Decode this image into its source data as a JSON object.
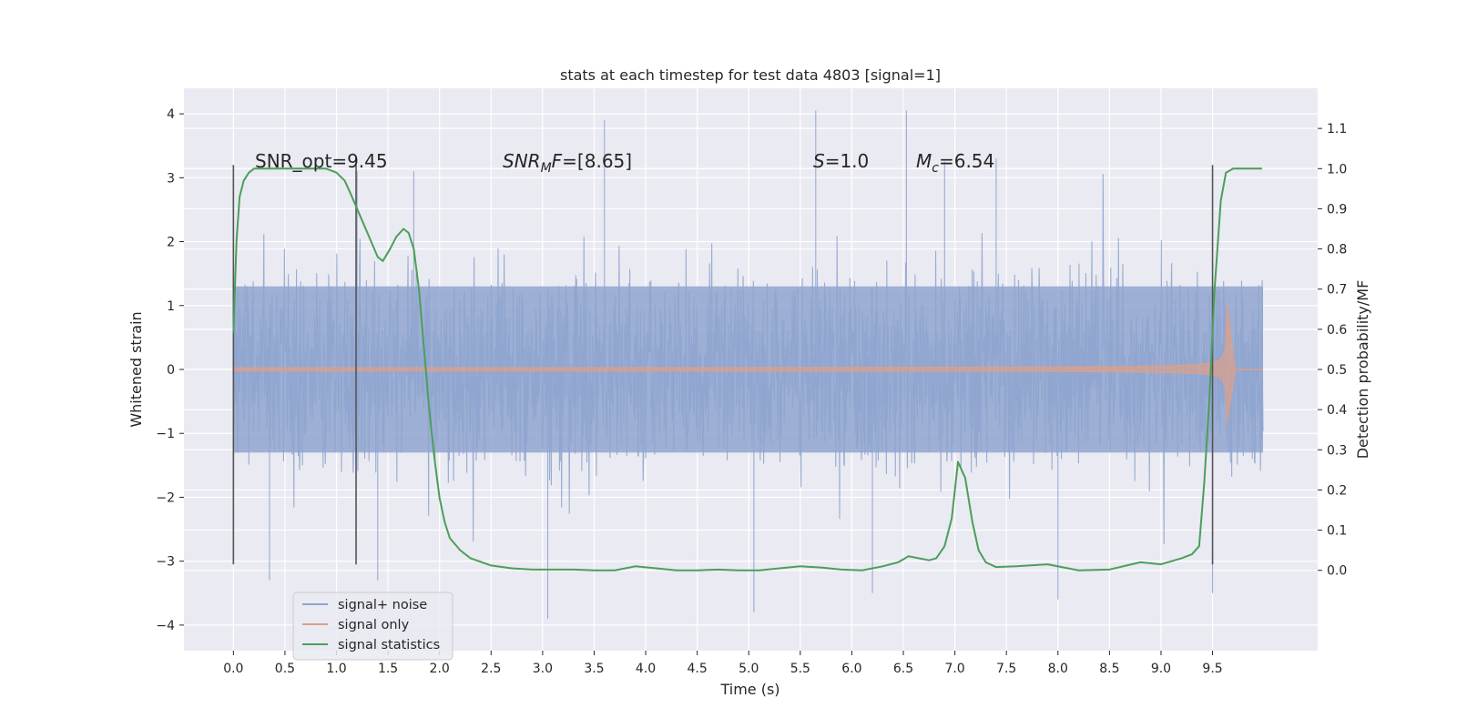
{
  "chart_data": {
    "type": "line",
    "title": "stats at each timestep for test data 4803 [signal=1]",
    "xlabel": "Time (s)",
    "ylabel_left": "Whitened strain",
    "ylabel_right": "Detection probability/MF",
    "xlim": [
      -0.48,
      10.52
    ],
    "ylim_left": [
      -4.4,
      4.4
    ],
    "ylim_right": [
      -0.2,
      1.2
    ],
    "x_ticks": [
      "0.0",
      "0.5",
      "1.0",
      "1.5",
      "2.0",
      "2.5",
      "3.0",
      "3.5",
      "4.0",
      "4.5",
      "5.0",
      "5.5",
      "6.0",
      "6.5",
      "7.0",
      "7.5",
      "8.0",
      "8.5",
      "9.0",
      "9.5"
    ],
    "y_left_ticks": [
      "4",
      "3",
      "2",
      "1",
      "0",
      "−1",
      "−2",
      "−3",
      "−4"
    ],
    "y_right_ticks": [
      "1.1",
      "1.0",
      "0.9",
      "0.8",
      "0.7",
      "0.6",
      "0.5",
      "0.4",
      "0.3",
      "0.2",
      "0.1",
      "0.0"
    ],
    "grid": true,
    "legend_position": "lower-left",
    "annotations": [
      {
        "id": "snr_opt",
        "text": "SNR_opt=9.45"
      },
      {
        "id": "snr_mf",
        "text_main": "SNR",
        "text_sub": "M",
        "text_main2": "F",
        "text_rest": "=[8.65]"
      },
      {
        "id": "s",
        "text_main": "S",
        "text_rest": "=1.0"
      },
      {
        "id": "mc",
        "text_main": "M",
        "text_sub": "c",
        "text_rest": "=6.54"
      }
    ],
    "vertical_markers_x": [
      0.0,
      1.19,
      9.5
    ],
    "series": [
      {
        "name": "signal+ noise",
        "color": "#8fa5cf",
        "axis": "left",
        "x_range": [
          0.0,
          9.99
        ],
        "envelope": {
          "p_low": -1.3,
          "p_high": 1.3,
          "spike_max": 4.05,
          "spike_min": -3.9
        },
        "peaks": [
          [
            1.2,
            3.1
          ],
          [
            1.75,
            3.1
          ],
          [
            3.6,
            3.9
          ],
          [
            5.65,
            4.05
          ],
          [
            6.53,
            4.05
          ],
          [
            6.9,
            3.25
          ],
          [
            7.4,
            3.3
          ],
          [
            3.05,
            -3.9
          ],
          [
            5.05,
            -3.8
          ],
          [
            9.5,
            -3.5
          ],
          [
            0.35,
            -3.3
          ],
          [
            1.4,
            -3.3
          ],
          [
            6.2,
            -3.5
          ],
          [
            8.0,
            -3.6
          ]
        ]
      },
      {
        "name": "signal only",
        "color": "#d9a08c",
        "axis": "left",
        "x_range": [
          0.0,
          9.99
        ],
        "chirp": {
          "merge_time": 9.64,
          "peak_amp": 1.05,
          "ringdown_end": 9.72,
          "amp_at_5s": 0.04,
          "amp_at_8s": 0.12
        }
      },
      {
        "name": "signal statistics",
        "color": "#4c9e5c",
        "axis": "right",
        "x": [
          0.0,
          0.03,
          0.06,
          0.1,
          0.15,
          0.2,
          0.3,
          0.5,
          0.7,
          0.9,
          1.0,
          1.08,
          1.15,
          1.2,
          1.3,
          1.4,
          1.45,
          1.52,
          1.58,
          1.65,
          1.7,
          1.75,
          1.8,
          1.85,
          1.9,
          1.95,
          2.0,
          2.05,
          2.1,
          2.2,
          2.3,
          2.5,
          2.7,
          2.9,
          3.1,
          3.3,
          3.5,
          3.7,
          3.9,
          4.1,
          4.3,
          4.5,
          4.7,
          4.9,
          5.1,
          5.3,
          5.5,
          5.7,
          5.9,
          6.1,
          6.3,
          6.45,
          6.55,
          6.65,
          6.75,
          6.82,
          6.9,
          6.97,
          7.03,
          7.1,
          7.17,
          7.23,
          7.3,
          7.4,
          7.6,
          7.9,
          8.2,
          8.5,
          8.8,
          9.0,
          9.2,
          9.3,
          9.37,
          9.42,
          9.47,
          9.52,
          9.58,
          9.63,
          9.7,
          9.8,
          9.9,
          9.98
        ],
        "y": [
          0.59,
          0.82,
          0.93,
          0.97,
          0.99,
          1.0,
          1.0,
          1.0,
          1.0,
          1.0,
          0.99,
          0.97,
          0.93,
          0.9,
          0.84,
          0.78,
          0.77,
          0.8,
          0.83,
          0.85,
          0.84,
          0.8,
          0.7,
          0.55,
          0.4,
          0.28,
          0.18,
          0.12,
          0.08,
          0.05,
          0.03,
          0.012,
          0.005,
          0.002,
          0.002,
          0.002,
          0.0,
          0.0,
          0.01,
          0.005,
          0.0,
          0.0,
          0.002,
          0.0,
          0.0,
          0.005,
          0.01,
          0.007,
          0.002,
          0.0,
          0.01,
          0.02,
          0.035,
          0.03,
          0.025,
          0.03,
          0.06,
          0.13,
          0.27,
          0.23,
          0.12,
          0.05,
          0.02,
          0.008,
          0.01,
          0.015,
          0.0,
          0.002,
          0.02,
          0.015,
          0.03,
          0.04,
          0.06,
          0.22,
          0.43,
          0.7,
          0.92,
          0.99,
          1.0,
          1.0,
          1.0,
          1.0
        ]
      }
    ]
  },
  "colors": {
    "axes_bg": "#eaeaf2",
    "grid": "#ffffff",
    "text": "#262626",
    "marker_line": "#555555"
  }
}
